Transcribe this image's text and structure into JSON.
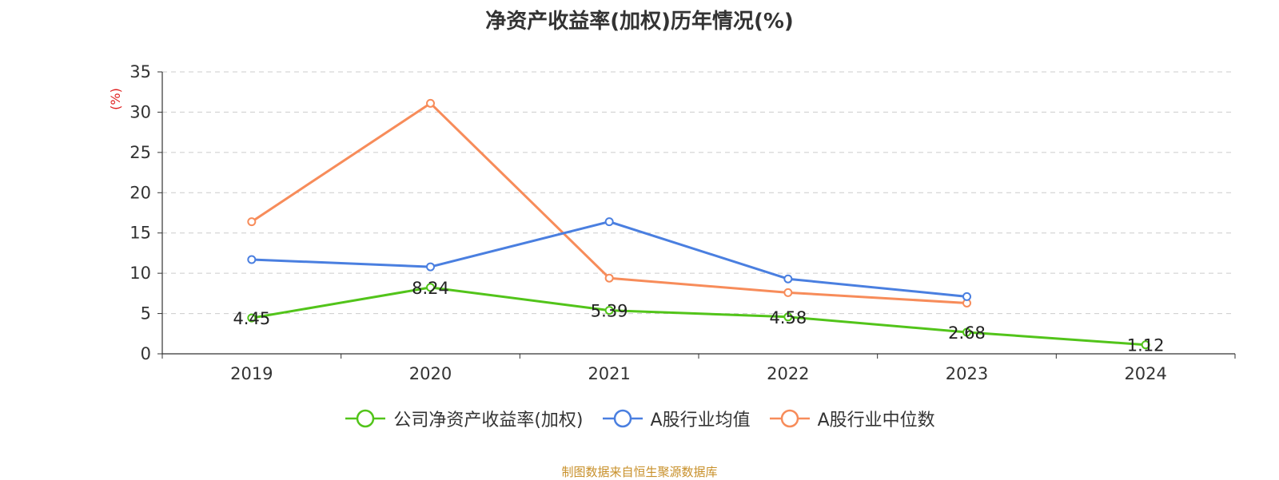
{
  "chart_data": {
    "type": "line",
    "title": "净资产收益率(加权)历年情况(%)",
    "ylabel": "(%)",
    "xlabel": "",
    "ylim": [
      0,
      35
    ],
    "y_ticks": [
      0,
      5,
      10,
      15,
      20,
      25,
      30,
      35
    ],
    "categories": [
      "2019",
      "2020",
      "2021",
      "2022",
      "2023",
      "2024"
    ],
    "grid": true,
    "legend_position": "bottom",
    "series": [
      {
        "name": "公司净资产收益率(加权)",
        "color": "#52c41a",
        "values": [
          4.45,
          8.24,
          5.39,
          4.58,
          2.68,
          1.12
        ],
        "show_labels": true
      },
      {
        "name": "A股行业均值",
        "color": "#4a7fe0",
        "values": [
          11.7,
          10.8,
          16.4,
          9.3,
          7.1,
          null
        ],
        "show_labels": false
      },
      {
        "name": "A股行业中位数",
        "color": "#f78c5a",
        "values": [
          16.4,
          31.1,
          9.4,
          7.6,
          6.3,
          null
        ],
        "show_labels": false
      }
    ]
  },
  "source_text": "制图数据来自恒生聚源数据库"
}
